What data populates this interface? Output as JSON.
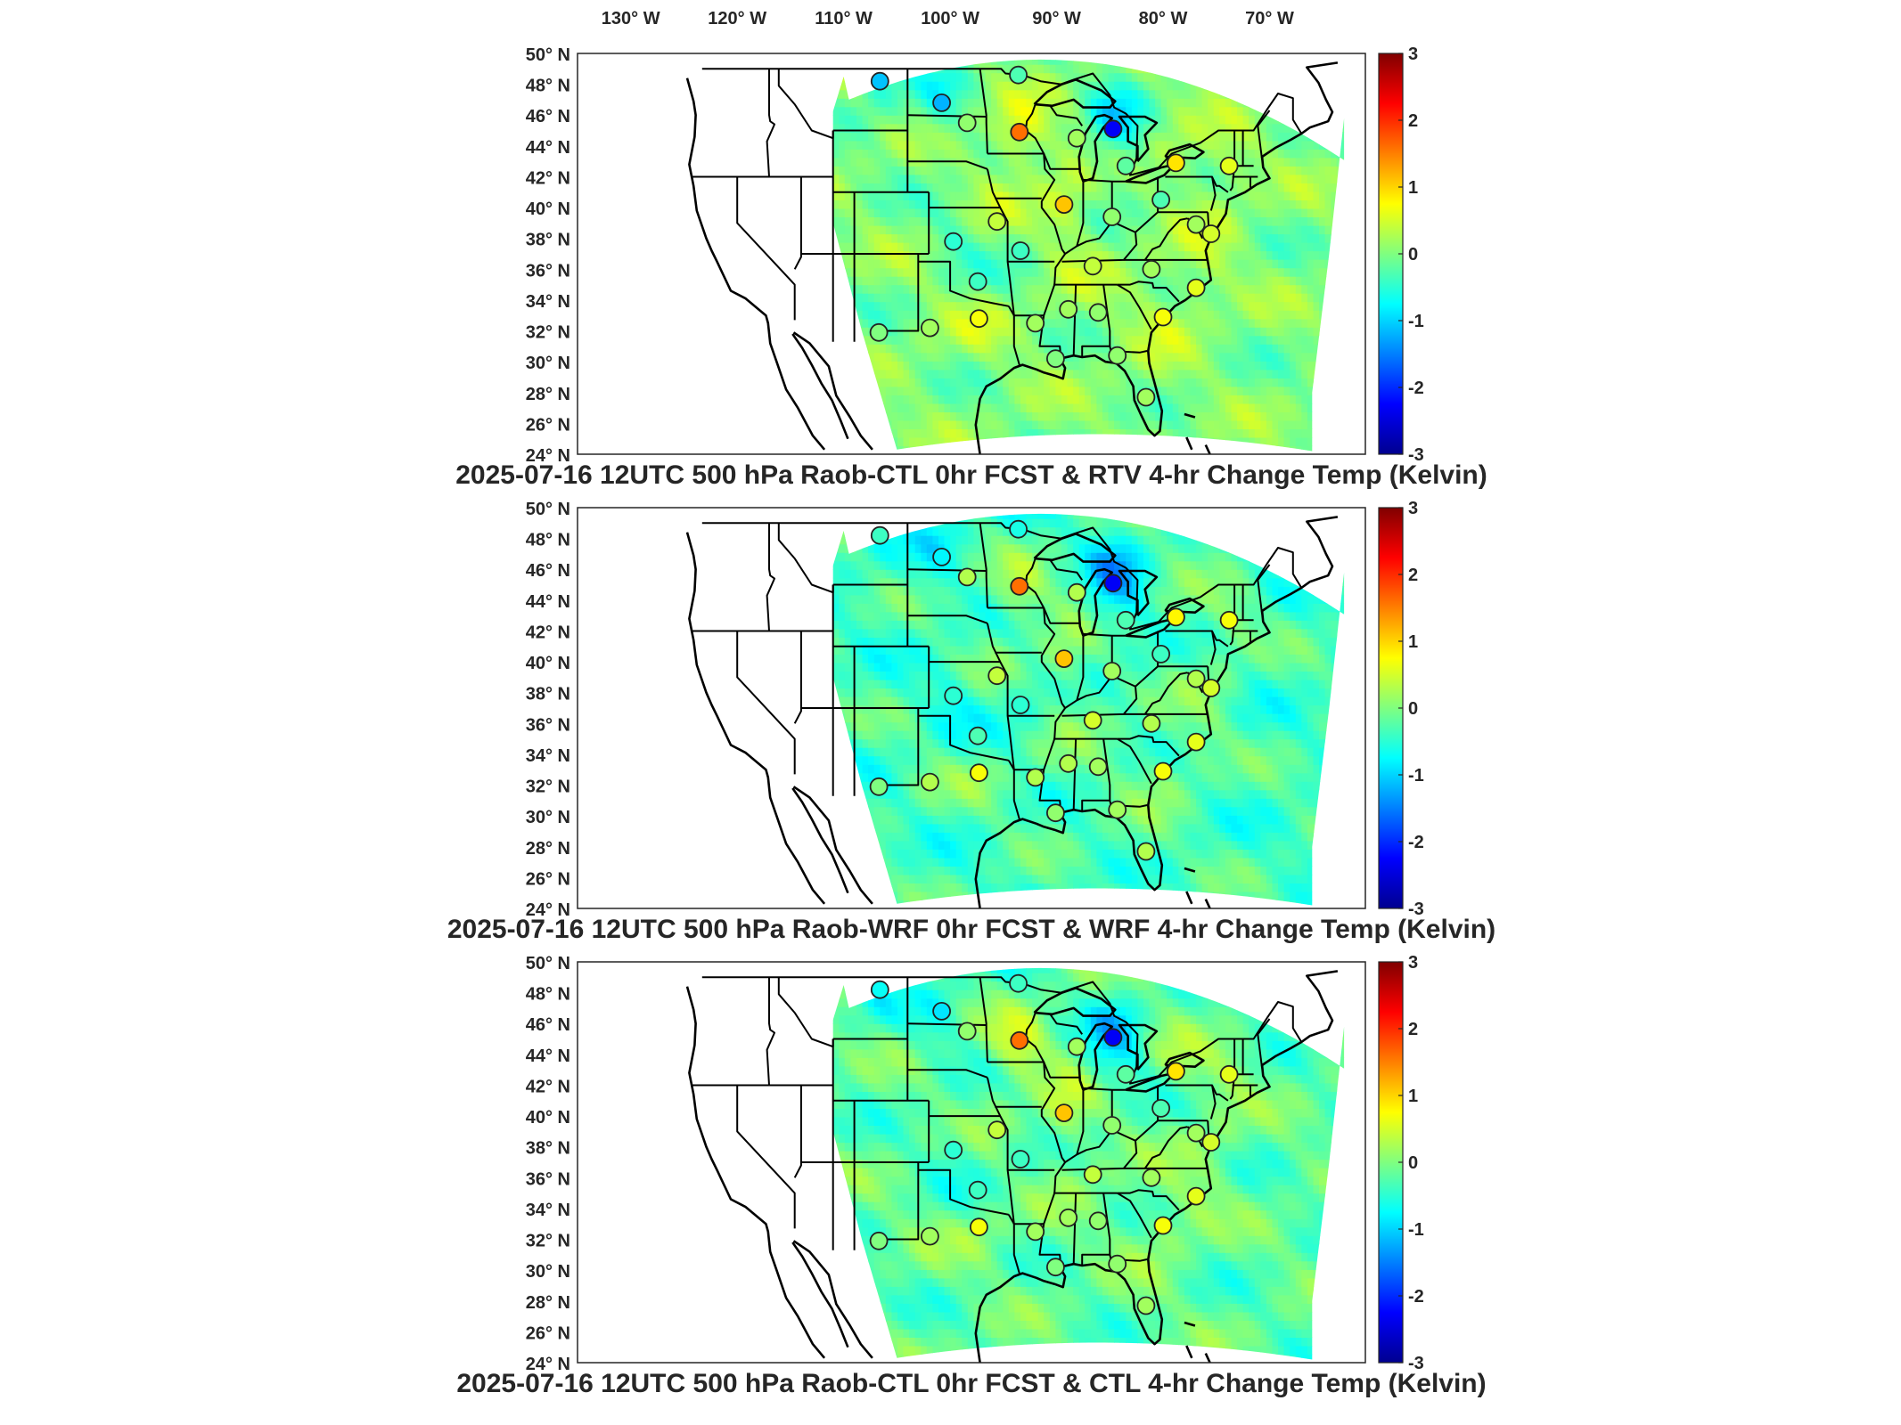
{
  "figure": {
    "lon_labels": [
      "130° W",
      "120° W",
      "110° W",
      "100° W",
      "90° W",
      "80° W",
      "70° W"
    ],
    "lat_labels": [
      "50° N",
      "48° N",
      "46° N",
      "44° N",
      "42° N",
      "40° N",
      "38° N",
      "36° N",
      "34° N",
      "32° N",
      "30° N",
      "28° N",
      "26° N",
      "24° N"
    ],
    "colorbar": {
      "ticks": [
        "3",
        "2",
        "1",
        "0",
        "-1",
        "-2",
        "-3"
      ],
      "range": [
        -3,
        3
      ],
      "colormap": "jet",
      "colors": [
        "#00008f",
        "#0000ff",
        "#00ffff",
        "#ffff00",
        "#ff0000",
        "#800000"
      ]
    },
    "colors": {
      "field_dominant": "#5ee7a4",
      "station_outline": "#222222",
      "station_warm": "#f7a53b",
      "station_cold": "#1740e0"
    },
    "panels": [
      {
        "title": "2025-07-16 12UTC 500 hPa Raob-CTL 0hr FCST & RTV 4-hr Change Temp (Kelvin)",
        "field_bias": 0.0,
        "stations": [
          {
            "lon": -106.6,
            "lat": 48.2,
            "value": -1.1
          },
          {
            "lon": -100.8,
            "lat": 46.8,
            "value": -1.2
          },
          {
            "lon": -93.6,
            "lat": 48.6,
            "value": -0.3
          },
          {
            "lon": -98.4,
            "lat": 45.5,
            "value": 0.1
          },
          {
            "lon": -93.5,
            "lat": 44.9,
            "value": 1.6
          },
          {
            "lon": -84.7,
            "lat": 45.1,
            "value": -2.3
          },
          {
            "lon": -88.1,
            "lat": 44.5,
            "value": 0.2
          },
          {
            "lon": -83.5,
            "lat": 42.7,
            "value": -0.2
          },
          {
            "lon": -78.8,
            "lat": 42.9,
            "value": 0.9
          },
          {
            "lon": -73.8,
            "lat": 42.7,
            "value": 0.6
          },
          {
            "lon": -89.3,
            "lat": 40.2,
            "value": 1.1
          },
          {
            "lon": -84.8,
            "lat": 39.4,
            "value": 0.1
          },
          {
            "lon": -80.2,
            "lat": 40.5,
            "value": -0.3
          },
          {
            "lon": -76.9,
            "lat": 38.9,
            "value": 0.2
          },
          {
            "lon": -75.5,
            "lat": 38.3,
            "value": 0.5
          },
          {
            "lon": -99.7,
            "lat": 37.8,
            "value": -0.5
          },
          {
            "lon": -95.6,
            "lat": 39.1,
            "value": 0.4
          },
          {
            "lon": -93.4,
            "lat": 37.2,
            "value": -0.4
          },
          {
            "lon": -86.6,
            "lat": 36.2,
            "value": 0.4
          },
          {
            "lon": -81.1,
            "lat": 36.0,
            "value": 0.2
          },
          {
            "lon": -97.4,
            "lat": 35.2,
            "value": -0.4
          },
          {
            "lon": -76.9,
            "lat": 34.8,
            "value": 0.6
          },
          {
            "lon": -80.0,
            "lat": 32.9,
            "value": 0.7
          },
          {
            "lon": -106.7,
            "lat": 31.9,
            "value": 0.0
          },
          {
            "lon": -101.9,
            "lat": 32.2,
            "value": 0.2
          },
          {
            "lon": -97.3,
            "lat": 32.8,
            "value": 0.7
          },
          {
            "lon": -92.0,
            "lat": 32.5,
            "value": 0.2
          },
          {
            "lon": -88.9,
            "lat": 33.4,
            "value": 0.2
          },
          {
            "lon": -86.1,
            "lat": 33.2,
            "value": 0.1
          },
          {
            "lon": -90.1,
            "lat": 30.2,
            "value": 0.0
          },
          {
            "lon": -84.3,
            "lat": 30.4,
            "value": 0.1
          },
          {
            "lon": -81.6,
            "lat": 27.7,
            "value": 0.2
          }
        ]
      },
      {
        "title": "2025-07-16 12UTC 500 hPa Raob-WRF 0hr FCST & WRF 4-hr Change Temp (Kelvin)",
        "field_bias": -0.35,
        "stations": [
          {
            "lon": -106.6,
            "lat": 48.2,
            "value": -0.4
          },
          {
            "lon": -100.8,
            "lat": 46.8,
            "value": -0.8
          },
          {
            "lon": -93.6,
            "lat": 48.6,
            "value": -0.6
          },
          {
            "lon": -98.4,
            "lat": 45.5,
            "value": 0.3
          },
          {
            "lon": -93.5,
            "lat": 44.9,
            "value": 1.6
          },
          {
            "lon": -84.7,
            "lat": 45.1,
            "value": -2.3
          },
          {
            "lon": -88.1,
            "lat": 44.5,
            "value": 0.3
          },
          {
            "lon": -83.5,
            "lat": 42.7,
            "value": -0.3
          },
          {
            "lon": -78.8,
            "lat": 42.9,
            "value": 0.8
          },
          {
            "lon": -73.8,
            "lat": 42.7,
            "value": 0.7
          },
          {
            "lon": -89.3,
            "lat": 40.2,
            "value": 1.1
          },
          {
            "lon": -84.8,
            "lat": 39.4,
            "value": 0.2
          },
          {
            "lon": -80.2,
            "lat": 40.5,
            "value": -0.4
          },
          {
            "lon": -76.9,
            "lat": 38.9,
            "value": 0.3
          },
          {
            "lon": -75.5,
            "lat": 38.3,
            "value": 0.5
          },
          {
            "lon": -99.7,
            "lat": 37.8,
            "value": -0.5
          },
          {
            "lon": -95.6,
            "lat": 39.1,
            "value": 0.4
          },
          {
            "lon": -93.4,
            "lat": 37.2,
            "value": -0.5
          },
          {
            "lon": -86.6,
            "lat": 36.2,
            "value": 0.5
          },
          {
            "lon": -81.1,
            "lat": 36.0,
            "value": 0.3
          },
          {
            "lon": -97.4,
            "lat": 35.2,
            "value": -0.3
          },
          {
            "lon": -76.9,
            "lat": 34.8,
            "value": 0.6
          },
          {
            "lon": -80.0,
            "lat": 32.9,
            "value": 0.7
          },
          {
            "lon": -106.7,
            "lat": 31.9,
            "value": 0.0
          },
          {
            "lon": -101.9,
            "lat": 32.2,
            "value": 0.3
          },
          {
            "lon": -97.3,
            "lat": 32.8,
            "value": 0.7
          },
          {
            "lon": -92.0,
            "lat": 32.5,
            "value": 0.3
          },
          {
            "lon": -88.9,
            "lat": 33.4,
            "value": 0.3
          },
          {
            "lon": -86.1,
            "lat": 33.2,
            "value": 0.2
          },
          {
            "lon": -90.1,
            "lat": 30.2,
            "value": 0.1
          },
          {
            "lon": -84.3,
            "lat": 30.4,
            "value": 0.2
          },
          {
            "lon": -81.6,
            "lat": 27.7,
            "value": 0.3
          }
        ]
      },
      {
        "title": "2025-07-16 12UTC 500 hPa Raob-CTL 0hr FCST & CTL 4-hr Change Temp (Kelvin)",
        "field_bias": -0.2,
        "stations": [
          {
            "lon": -106.6,
            "lat": 48.2,
            "value": -0.7
          },
          {
            "lon": -100.8,
            "lat": 46.8,
            "value": -0.9
          },
          {
            "lon": -93.6,
            "lat": 48.6,
            "value": -0.4
          },
          {
            "lon": -98.4,
            "lat": 45.5,
            "value": 0.1
          },
          {
            "lon": -93.5,
            "lat": 44.9,
            "value": 1.6
          },
          {
            "lon": -84.7,
            "lat": 45.1,
            "value": -2.3
          },
          {
            "lon": -88.1,
            "lat": 44.5,
            "value": 0.2
          },
          {
            "lon": -83.5,
            "lat": 42.7,
            "value": -0.2
          },
          {
            "lon": -78.8,
            "lat": 42.9,
            "value": 0.9
          },
          {
            "lon": -73.8,
            "lat": 42.7,
            "value": 0.6
          },
          {
            "lon": -89.3,
            "lat": 40.2,
            "value": 1.1
          },
          {
            "lon": -84.8,
            "lat": 39.4,
            "value": 0.1
          },
          {
            "lon": -80.2,
            "lat": 40.5,
            "value": -0.3
          },
          {
            "lon": -76.9,
            "lat": 38.9,
            "value": 0.2
          },
          {
            "lon": -75.5,
            "lat": 38.3,
            "value": 0.5
          },
          {
            "lon": -99.7,
            "lat": 37.8,
            "value": -0.5
          },
          {
            "lon": -95.6,
            "lat": 39.1,
            "value": 0.4
          },
          {
            "lon": -93.4,
            "lat": 37.2,
            "value": -0.4
          },
          {
            "lon": -86.6,
            "lat": 36.2,
            "value": 0.4
          },
          {
            "lon": -81.1,
            "lat": 36.0,
            "value": 0.2
          },
          {
            "lon": -97.4,
            "lat": 35.2,
            "value": -0.4
          },
          {
            "lon": -76.9,
            "lat": 34.8,
            "value": 0.6
          },
          {
            "lon": -80.0,
            "lat": 32.9,
            "value": 0.7
          },
          {
            "lon": -106.7,
            "lat": 31.9,
            "value": 0.0
          },
          {
            "lon": -101.9,
            "lat": 32.2,
            "value": 0.2
          },
          {
            "lon": -97.3,
            "lat": 32.8,
            "value": 0.7
          },
          {
            "lon": -92.0,
            "lat": 32.5,
            "value": 0.2
          },
          {
            "lon": -88.9,
            "lat": 33.4,
            "value": 0.2
          },
          {
            "lon": -86.1,
            "lat": 33.2,
            "value": 0.1
          },
          {
            "lon": -90.1,
            "lat": 30.2,
            "value": 0.0
          },
          {
            "lon": -84.3,
            "lat": 30.4,
            "value": 0.1
          },
          {
            "lon": -81.6,
            "lat": 27.7,
            "value": 0.2
          }
        ]
      }
    ]
  }
}
